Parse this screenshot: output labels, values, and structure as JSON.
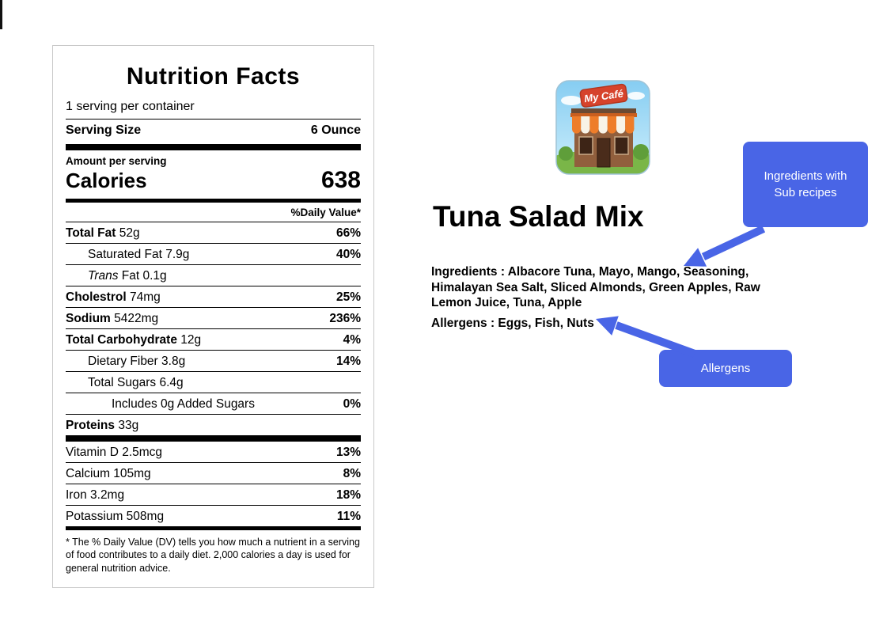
{
  "colors": {
    "accent_blue": "#4965e6",
    "label_border": "#c9c9c9",
    "text": "#000000"
  },
  "nutrition": {
    "title": "Nutrition Facts",
    "servings_line": "1 serving per container",
    "serving_size_label": "Serving Size",
    "serving_size_value": "6 Ounce",
    "amount_per_serving": "Amount per serving",
    "calories_label": "Calories",
    "calories_value": "638",
    "daily_value_header": "%Daily Value*",
    "main_rows": [
      {
        "indent": 0,
        "parts": [
          {
            "s": "b",
            "t": "Total Fat"
          },
          {
            "s": "n",
            "t": " 52g"
          }
        ],
        "pct": "66%"
      },
      {
        "indent": 1,
        "parts": [
          {
            "s": "n",
            "t": "Saturated Fat 7.9g"
          }
        ],
        "pct": "40%"
      },
      {
        "indent": 1,
        "parts": [
          {
            "s": "i",
            "t": "Trans"
          },
          {
            "s": "n",
            "t": " Fat 0.1g"
          }
        ],
        "pct": null
      },
      {
        "indent": 0,
        "parts": [
          {
            "s": "b",
            "t": "Cholestrol"
          },
          {
            "s": "n",
            "t": " 74mg"
          }
        ],
        "pct": "25%"
      },
      {
        "indent": 0,
        "parts": [
          {
            "s": "b",
            "t": "Sodium"
          },
          {
            "s": "n",
            "t": " 5422mg"
          }
        ],
        "pct": "236%"
      },
      {
        "indent": 0,
        "parts": [
          {
            "s": "b",
            "t": "Total Carbohydrate"
          },
          {
            "s": "n",
            "t": " 12g"
          }
        ],
        "pct": "4%"
      },
      {
        "indent": 1,
        "parts": [
          {
            "s": "n",
            "t": "Dietary Fiber 3.8g"
          }
        ],
        "pct": "14%"
      },
      {
        "indent": 1,
        "parts": [
          {
            "s": "n",
            "t": "Total Sugars 6.4g"
          }
        ],
        "pct": null
      },
      {
        "indent": 2,
        "parts": [
          {
            "s": "n",
            "t": "Includes 0g Added Sugars"
          }
        ],
        "pct": "0%"
      },
      {
        "indent": 0,
        "parts": [
          {
            "s": "b",
            "t": "Proteins"
          },
          {
            "s": "n",
            "t": " 33g"
          }
        ],
        "pct": null
      }
    ],
    "vitamin_rows": [
      {
        "indent": 0,
        "parts": [
          {
            "s": "n",
            "t": "Vitamin D 2.5mcg"
          }
        ],
        "pct": "13%"
      },
      {
        "indent": 0,
        "parts": [
          {
            "s": "n",
            "t": "Calcium 105mg"
          }
        ],
        "pct": "8%"
      },
      {
        "indent": 0,
        "parts": [
          {
            "s": "n",
            "t": "Iron 3.2mg"
          }
        ],
        "pct": "18%"
      },
      {
        "indent": 0,
        "parts": [
          {
            "s": "n",
            "t": "Potassium 508mg"
          }
        ],
        "pct": "11%"
      }
    ],
    "footnote": "* The % Daily Value (DV) tells you how much a nutrient in a serving of food contributes to a daily diet. 2,000 calories a day is used for general nutrition advice."
  },
  "logo": {
    "text": "My Café"
  },
  "product": {
    "title": "Tuna Salad Mix",
    "ingredients": "Ingredients : Albacore Tuna, Mayo, Mango, Seasoning, Himalayan Sea Salt, Sliced Almonds, Green Apples, Raw Lemon Juice, Tuna, Apple",
    "allergens": "Allergens : Eggs, Fish, Nuts"
  },
  "callouts": {
    "ingredients_label": "Ingredients with Sub recipes",
    "allergens_label": "Allergens"
  }
}
